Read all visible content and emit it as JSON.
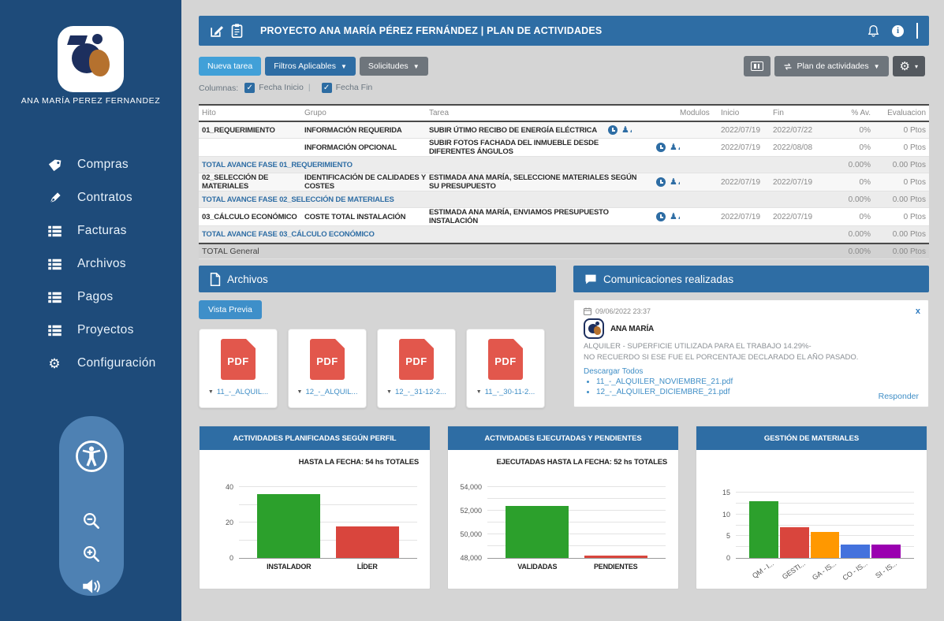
{
  "sidebar": {
    "user_name": "ANA MARÍA PEREZ FERNANDEZ",
    "menu": [
      {
        "icon": "tag-icon",
        "label": "Compras"
      },
      {
        "icon": "pen-icon",
        "label": "Contratos"
      },
      {
        "icon": "list-icon",
        "label": "Facturas"
      },
      {
        "icon": "list-icon",
        "label": "Archivos"
      },
      {
        "icon": "list-icon",
        "label": "Pagos"
      },
      {
        "icon": "list-icon",
        "label": "Proyectos"
      },
      {
        "icon": "gear-icon",
        "label": "Configuración"
      }
    ]
  },
  "header": {
    "title": "PROYECTO ANA MARÍA PÉREZ FERNÁNDEZ  |  PLAN DE ACTIVIDADES"
  },
  "toolbar": {
    "new_task": "Nueva tarea",
    "filters": "Filtros Aplicables",
    "requests": "Solicitudes",
    "plan": "Plan de actividades"
  },
  "columns_bar": {
    "label": "Columnas:",
    "options": [
      {
        "label": "Fecha Inicio",
        "checked": true
      },
      {
        "label": "Fecha Fin",
        "checked": true
      }
    ]
  },
  "table": {
    "headers": [
      "Hito",
      "Grupo",
      "Tarea",
      "Modulos",
      "Inicio",
      "Fin",
      "% Av.",
      "Evaluacion"
    ],
    "rows": [
      {
        "type": "data",
        "hito": "01_REQUERIMIENTO",
        "grupo": "INFORMACIÓN REQUERIDA",
        "tarea": "SUBIR ÚTIMO RECIBO DE ENERGÍA ELÉCTRICA",
        "modulos": "",
        "inicio": "2022/07/19",
        "fin": "2022/07/22",
        "av": "0%",
        "eval": "0 Ptos"
      },
      {
        "type": "data",
        "hito": "",
        "grupo": "INFORMACIÓN OPCIONAL",
        "tarea": "SUBIR FOTOS FACHADA DEL INMUEBLE DESDE DIFERENTES ÁNGULOS",
        "modulos": "",
        "inicio": "2022/07/19",
        "fin": "2022/08/08",
        "av": "0%",
        "eval": "0 Ptos"
      },
      {
        "type": "total",
        "label": "TOTAL AVANCE FASE 01_REQUERIMIENTO",
        "av": "0.00%",
        "eval": "0.00 Ptos"
      },
      {
        "type": "data",
        "hito": "02_SELECCIÓN DE MATERIALES",
        "grupo": "IDENTIFICACIÓN DE CALIDADES Y COSTES",
        "tarea": "ESTIMADA ANA MARÍA, SELECCIONE MATERIALES SEGÚN SU PRESUPUESTO",
        "modulos": "",
        "inicio": "2022/07/19",
        "fin": "2022/07/19",
        "av": "0%",
        "eval": "0 Ptos"
      },
      {
        "type": "total",
        "label": "TOTAL AVANCE FASE 02_SELECCIÓN DE MATERIALES",
        "av": "0.00%",
        "eval": "0.00 Ptos"
      },
      {
        "type": "data",
        "hito": "03_CÁLCULO ECONÓMICO",
        "grupo": "COSTE TOTAL INSTALACIÓN",
        "tarea": "ESTIMADA ANA MARÍA, ENVIAMOS PRESUPUESTO INSTALACIÓN",
        "modulos": "",
        "inicio": "2022/07/19",
        "fin": "2022/07/19",
        "av": "0%",
        "eval": "0 Ptos"
      },
      {
        "type": "total",
        "label": "TOTAL AVANCE FASE 03_CÁLCULO ECONÓMICO",
        "av": "0.00%",
        "eval": "0.00 Ptos"
      },
      {
        "type": "grand",
        "label": "TOTAL General",
        "av": "0.00%",
        "eval": "0.00 Ptos"
      }
    ]
  },
  "archivos": {
    "title": "Archivos",
    "preview_button": "Vista Previa",
    "files": [
      "11_-_ALQUIL...",
      "12_-_ALQUIL...",
      "12_-_31-12-2...",
      "11_-_30-11-2..."
    ]
  },
  "comunicaciones": {
    "title": "Comunicaciones realizadas",
    "message": {
      "date": "09/06/2022 23:37",
      "author": "ANA MARÍA",
      "body_line1": "ALQUILER - SUPERFICIE UTILIZADA PARA EL TRABAJO 14.29%-",
      "body_line2": "NO RECUERDO SI ESE FUE EL PORCENTAJE DECLARADO EL AÑO PASADO.",
      "download_all": "Descargar Todos",
      "attachments": [
        "11_-_ALQUILER_NOVIEMBRE_21.pdf",
        "12_-_ALQUILER_DICIEMBRE_21.pdf"
      ],
      "reply": "Responder",
      "close": "x"
    }
  },
  "chart_data": [
    {
      "type": "bar",
      "title": "ACTIVIDADES  PLANIFICADAS SEGÚN PERFIL",
      "subtitle": "HASTA LA FECHA:  54 hs TOTALES",
      "categories": [
        "INSTALADOR",
        "LÍDER"
      ],
      "values": [
        36,
        18
      ],
      "colors": [
        "#2ca02c",
        "#d9453d"
      ],
      "ylim": [
        0,
        44
      ],
      "yticks": [
        {
          "v": 0,
          "label": "0"
        },
        {
          "v": 20,
          "label": "20"
        },
        {
          "v": 40,
          "label": "40"
        }
      ],
      "grid": [
        10,
        20,
        30,
        40
      ],
      "bar_width_pct": 40,
      "rotate_labels": false
    },
    {
      "type": "bar",
      "title": "ACTIVIDADES  EJECUTADAS Y PENDIENTES",
      "subtitle": "EJECUTADAS HASTA LA FECHA:  52 hs TOTALES",
      "categories": [
        "VALIDADAS",
        "PENDIENTES"
      ],
      "values": [
        52400,
        48200
      ],
      "colors": [
        "#2ca02c",
        "#d9453d"
      ],
      "ylim": [
        48000,
        54600
      ],
      "yticks": [
        {
          "v": 48000,
          "label": "48,000"
        },
        {
          "v": 50000,
          "label": "50,000"
        },
        {
          "v": 52000,
          "label": "52,000"
        },
        {
          "v": 54000,
          "label": "54,000"
        }
      ],
      "grid": [
        49000,
        50000,
        51000,
        52000,
        53000,
        54000
      ],
      "bar_width_pct": 40,
      "rotate_labels": false
    },
    {
      "type": "bar",
      "title": "GESTIÓN DE MATERIALES",
      "subtitle": "",
      "categories": [
        "QM - I...",
        "GESTI...",
        "GA - IS...",
        "CO - IS...",
        "SI - IS..."
      ],
      "values": [
        13,
        7,
        6,
        3,
        3
      ],
      "colors": [
        "#2ca02c",
        "#d9453d",
        "#ff9800",
        "#4472dd",
        "#9a00b0"
      ],
      "ylim": [
        0,
        16.5
      ],
      "yticks": [
        {
          "v": 0,
          "label": "0"
        },
        {
          "v": 5,
          "label": "5"
        },
        {
          "v": 10,
          "label": "10"
        },
        {
          "v": 15,
          "label": "15"
        }
      ],
      "grid": [
        2.5,
        5,
        7.5,
        10,
        12.5,
        15
      ],
      "bar_width_pct": 17,
      "rotate_labels": true
    }
  ]
}
